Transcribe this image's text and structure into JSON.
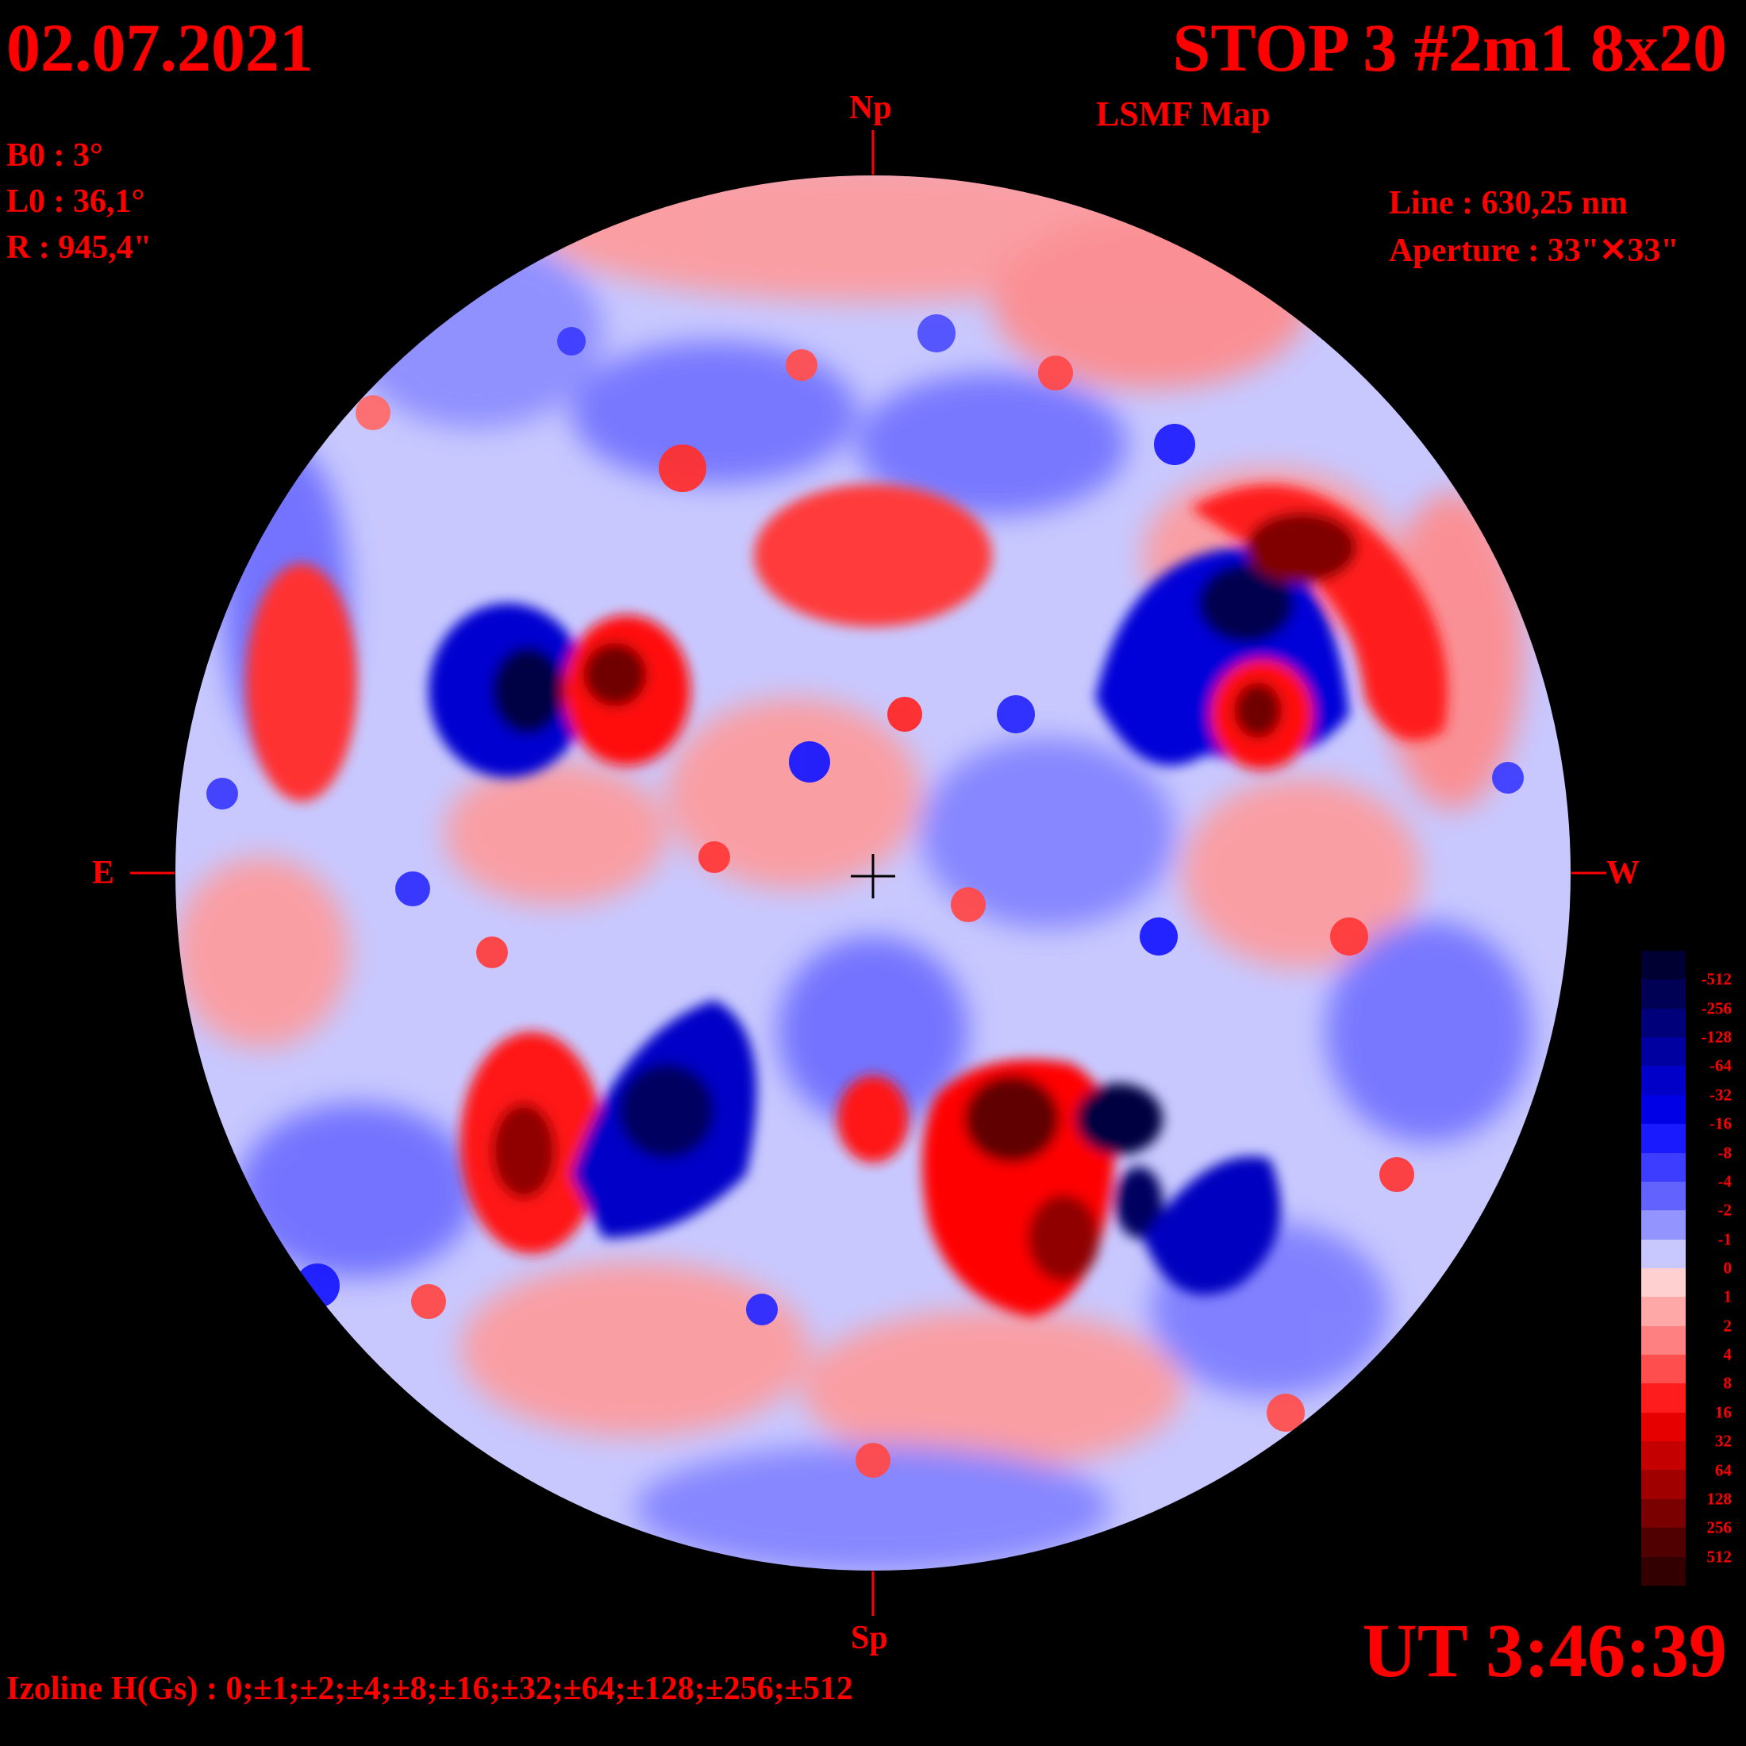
{
  "header": {
    "date": "02.07.2021",
    "title": "STOP 3 #2m1 8x20",
    "subtitle": "LSMF  Map"
  },
  "params": {
    "b0": "B0 : 3°",
    "l0": "L0 : 36,1°",
    "r": "R  : 945,4\""
  },
  "instrument": {
    "line": "Line :  630,25 nm",
    "aperture": "Aperture : 33\"✕33\""
  },
  "directions": {
    "north": "Np",
    "south": "Sp",
    "east": "E",
    "west": "W"
  },
  "time": "UT 3:46:39",
  "izoline": "Izoline H(Gs) : 0;±1;±2;±4;±8;±16;±32;±64;±128;±256;±512",
  "colorbar": {
    "labels": [
      "-512",
      "-256",
      "-128",
      "-64",
      "-32",
      "-16",
      "-8",
      "-4",
      "-2",
      "-1",
      "0",
      "1",
      "2",
      "4",
      "8",
      "16",
      "32",
      "64",
      "128",
      "256",
      "512"
    ],
    "colors": [
      "#000033",
      "#000055",
      "#00007a",
      "#0000a0",
      "#0000c8",
      "#0000e6",
      "#1a1aff",
      "#3d3dff",
      "#6262ff",
      "#9494ff",
      "#c8c8ff",
      "#ffd0d0",
      "#ffa8a8",
      "#ff8080",
      "#ff4e4e",
      "#ff1c1c",
      "#e60000",
      "#c40000",
      "#a00000",
      "#7a0000",
      "#500000",
      "#330000"
    ]
  },
  "palette": {
    "disk_background": "#c8c8ff",
    "text": "#ff0000"
  }
}
